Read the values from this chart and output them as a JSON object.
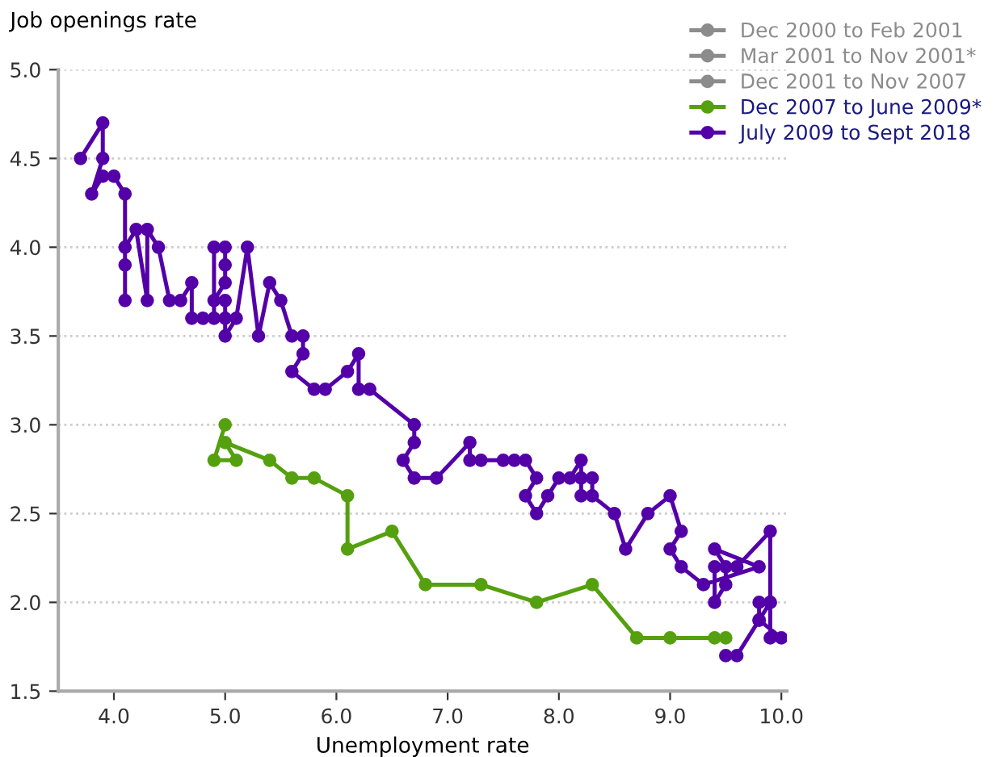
{
  "chart_data": {
    "type": "line",
    "xlabel": "Unemployment rate",
    "ylabel": "Job openings rate",
    "xlim": [
      3.5,
      10.05
    ],
    "ylim": [
      1.5,
      5.0
    ],
    "xticks": [
      {
        "value": 4,
        "label": "4.0"
      },
      {
        "value": 5,
        "label": "5.0"
      },
      {
        "value": 6,
        "label": "6.0"
      },
      {
        "value": 7,
        "label": "7.0"
      },
      {
        "value": 8,
        "label": "8.0"
      },
      {
        "value": 9,
        "label": "9.0"
      },
      {
        "value": 10,
        "label": "10.0"
      }
    ],
    "yticks": [
      {
        "value": 1.5,
        "label": "1.5"
      },
      {
        "value": 2,
        "label": "2.0"
      },
      {
        "value": 2.5,
        "label": "2.5"
      },
      {
        "value": 3,
        "label": "3.0"
      },
      {
        "value": 3.5,
        "label": "3.5"
      },
      {
        "value": 4,
        "label": "4.0"
      },
      {
        "value": 4.5,
        "label": "4.5"
      },
      {
        "value": 5,
        "label": "5.0"
      }
    ],
    "grid": "y",
    "legend": "top right",
    "marker": "circle",
    "line_style": "solid",
    "series": [
      {
        "name": "Dec 2000 to Feb 2001",
        "color": "#8c8c8c"
      },
      {
        "name": "Mar 2001 to Nov 2001*",
        "color": "#8c8c8c"
      },
      {
        "name": "Dec 2001 to Nov 2007",
        "color": "#8c8c8c"
      },
      {
        "name": "Dec 2007 to June 2009*",
        "color": "#55a00e",
        "x": [
          5.0,
          4.9,
          5.1,
          5.0,
          5.4,
          5.6,
          5.8,
          6.1,
          6.1,
          6.5,
          6.8,
          7.3,
          7.8,
          8.3,
          8.7,
          9.0,
          9.4,
          9.5
        ],
        "values": [
          3.0,
          2.8,
          2.8,
          2.9,
          2.8,
          2.7,
          2.7,
          2.6,
          2.3,
          2.4,
          2.1,
          2.1,
          2.0,
          2.1,
          1.8,
          1.8,
          1.8,
          1.8
        ]
      },
      {
        "name": "July 2009 to Sept 2018",
        "color": "#5400a8",
        "x": [
          9.5,
          9.6,
          9.8,
          10.0,
          9.9,
          9.9,
          9.8,
          9.8,
          9.9,
          9.9,
          9.6,
          9.4,
          9.4,
          9.5,
          9.5,
          9.4,
          9.8,
          9.3,
          9.1,
          9.0,
          9.1,
          9.0,
          8.8,
          8.6,
          8.5,
          8.3,
          8.3,
          8.2,
          8.2,
          8.2,
          8.1,
          8.0,
          7.9,
          7.8,
          7.7,
          7.8,
          7.7,
          7.6,
          7.5,
          7.3,
          7.2,
          7.2,
          6.9,
          6.7,
          6.6,
          6.7,
          6.7,
          6.3,
          6.2,
          6.2,
          6.1,
          5.9,
          5.8,
          5.6,
          5.7,
          5.7,
          5.6,
          5.5,
          5.4,
          5.3,
          5.2,
          5.1,
          5.0,
          5.0,
          5.0,
          4.9,
          5.0,
          5.0,
          5.0,
          4.9,
          4.9,
          4.8,
          4.7,
          4.7,
          4.6,
          4.5,
          4.4,
          4.3,
          4.3,
          4.2,
          4.1,
          4.1,
          4.1,
          4.1,
          4.0,
          3.9,
          3.8,
          3.9,
          3.9,
          3.7
        ],
        "values": [
          1.7,
          1.7,
          1.9,
          1.8,
          1.8,
          2.0,
          2.0,
          1.9,
          2.0,
          2.4,
          2.2,
          2.2,
          2.0,
          2.1,
          2.2,
          2.3,
          2.2,
          2.1,
          2.2,
          2.3,
          2.4,
          2.6,
          2.5,
          2.3,
          2.5,
          2.6,
          2.7,
          2.7,
          2.6,
          2.8,
          2.7,
          2.7,
          2.6,
          2.5,
          2.6,
          2.7,
          2.8,
          2.8,
          2.8,
          2.8,
          2.8,
          2.9,
          2.7,
          2.7,
          2.8,
          2.9,
          3.0,
          3.2,
          3.2,
          3.4,
          3.3,
          3.2,
          3.2,
          3.3,
          3.4,
          3.5,
          3.5,
          3.7,
          3.8,
          3.5,
          4.0,
          3.6,
          3.5,
          3.6,
          3.7,
          3.7,
          3.8,
          3.9,
          4.0,
          4.0,
          3.6,
          3.6,
          3.6,
          3.8,
          3.7,
          3.7,
          4.0,
          4.1,
          3.7,
          4.1,
          4.0,
          3.7,
          3.9,
          4.3,
          4.4,
          4.4,
          4.3,
          4.5,
          4.7,
          4.5
        ]
      }
    ]
  }
}
